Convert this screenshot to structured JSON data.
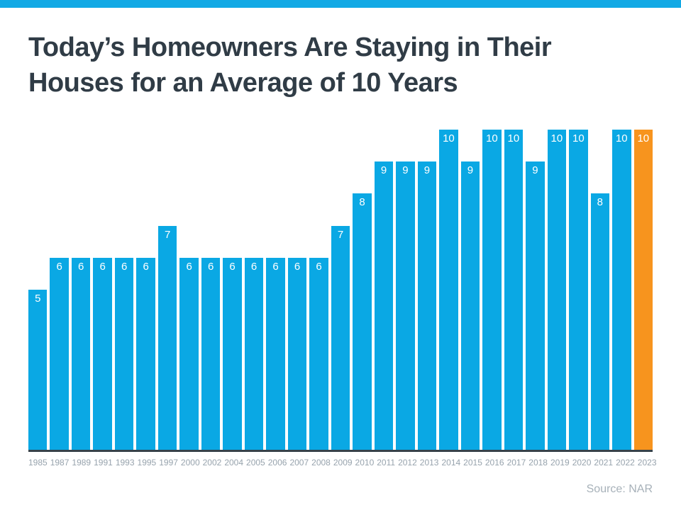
{
  "title": "Today’s Homeowners Are Staying in Their Houses for an Average of 10 Years",
  "title_lines": [
    "Today’s Homeowners Are Staying in Their",
    "Houses for an Average of 10 Years"
  ],
  "source_label": "Source: NAR",
  "colors": {
    "accent_bar": "#12A9E5",
    "bar": "#0AA8E4",
    "highlight": "#F7941E",
    "title_text": "#303C46",
    "axis_line": "#37424A",
    "tick_text": "#97A3AD",
    "value_text": "#FFFFFF",
    "source_text": "#A7B1B9"
  },
  "chart_data": {
    "type": "bar",
    "title": "Today’s Homeowners Are Staying in Their Houses for an Average of 10 Years",
    "categories": [
      "1985",
      "1987",
      "1989",
      "1991",
      "1993",
      "1995",
      "1997",
      "2000",
      "2002",
      "2004",
      "2005",
      "2006",
      "2007",
      "2008",
      "2009",
      "2010",
      "2011",
      "2012",
      "2013",
      "2014",
      "2015",
      "2016",
      "2017",
      "2018",
      "2019",
      "2020",
      "2021",
      "2022",
      "2023"
    ],
    "values": [
      5,
      6,
      6,
      6,
      6,
      6,
      7,
      6,
      6,
      6,
      6,
      6,
      6,
      6,
      7,
      8,
      9,
      9,
      9,
      10,
      9,
      10,
      10,
      9,
      10,
      10,
      8,
      10,
      10
    ],
    "xlabel": "",
    "ylabel": "",
    "ylim": [
      0,
      10
    ],
    "unit": "years",
    "highlight_index": 28,
    "data_labels": true,
    "grid": false,
    "legend": false,
    "source": "Source: NAR"
  }
}
